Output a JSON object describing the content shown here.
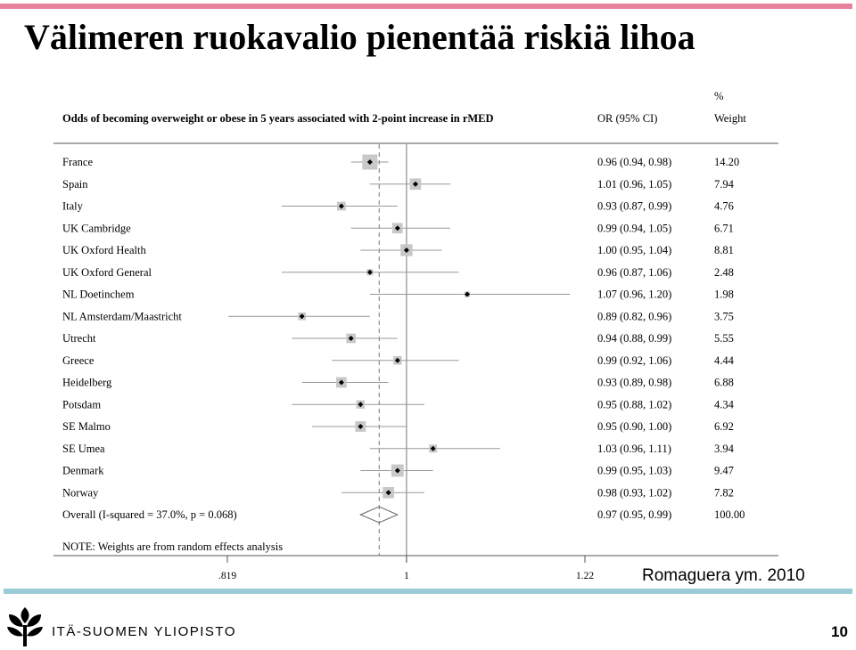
{
  "slide": {
    "title": "Välimeren ruokavalio pienentää riskiä lihoa",
    "citation": "Romaguera ym. 2010",
    "university": "ITÄ-SUOMEN YLIOPISTO",
    "page_number": "10",
    "colors": {
      "top_bar": "#e8819b",
      "bottom_bar": "#9ccbd8"
    },
    "logo_icon": "uef-logo-icon"
  },
  "chart_data": {
    "type": "forest",
    "title": "Odds of becoming overweight or obese in 5 years associated with 2-point increase in rMED",
    "col_or_header": "OR (95% CI)",
    "col_weight_unit": "%",
    "col_weight_header": "Weight",
    "note": "NOTE: Weights are from random effects analysis",
    "x_scale": "log",
    "xlim": [
      0.819,
      1.22
    ],
    "x_ticks": [
      {
        "value": 0.819,
        "label": ".819"
      },
      {
        "value": 1,
        "label": "1"
      },
      {
        "value": 1.22,
        "label": "1.22"
      }
    ],
    "null_line": 1,
    "studies": [
      {
        "name": "France",
        "or": 0.96,
        "lo": 0.94,
        "hi": 0.98,
        "ci_text": "0.96 (0.94, 0.98)",
        "weight": 14.2,
        "weight_text": "14.20"
      },
      {
        "name": "Spain",
        "or": 1.01,
        "lo": 0.96,
        "hi": 1.05,
        "ci_text": "1.01 (0.96, 1.05)",
        "weight": 7.94,
        "weight_text": "7.94"
      },
      {
        "name": "Italy",
        "or": 0.93,
        "lo": 0.87,
        "hi": 0.99,
        "ci_text": "0.93 (0.87, 0.99)",
        "weight": 4.76,
        "weight_text": "4.76"
      },
      {
        "name": "UK Cambridge",
        "or": 0.99,
        "lo": 0.94,
        "hi": 1.05,
        "ci_text": "0.99 (0.94, 1.05)",
        "weight": 6.71,
        "weight_text": "6.71"
      },
      {
        "name": "UK Oxford Health",
        "or": 1.0,
        "lo": 0.95,
        "hi": 1.04,
        "ci_text": "1.00 (0.95, 1.04)",
        "weight": 8.81,
        "weight_text": "8.81"
      },
      {
        "name": "UK Oxford General",
        "or": 0.96,
        "lo": 0.87,
        "hi": 1.06,
        "ci_text": "0.96 (0.87, 1.06)",
        "weight": 2.48,
        "weight_text": "2.48"
      },
      {
        "name": "NL Doetinchem",
        "or": 1.07,
        "lo": 0.96,
        "hi": 1.2,
        "ci_text": "1.07 (0.96, 1.20)",
        "weight": 1.98,
        "weight_text": "1.98"
      },
      {
        "name": "NL Amsterdam/Maastricht",
        "or": 0.89,
        "lo": 0.82,
        "hi": 0.96,
        "ci_text": "0.89 (0.82, 0.96)",
        "weight": 3.75,
        "weight_text": "3.75"
      },
      {
        "name": "Utrecht",
        "or": 0.94,
        "lo": 0.88,
        "hi": 0.99,
        "ci_text": "0.94 (0.88, 0.99)",
        "weight": 5.55,
        "weight_text": "5.55"
      },
      {
        "name": "Greece",
        "or": 0.99,
        "lo": 0.92,
        "hi": 1.06,
        "ci_text": "0.99 (0.92, 1.06)",
        "weight": 4.44,
        "weight_text": "4.44"
      },
      {
        "name": "Heidelberg",
        "or": 0.93,
        "lo": 0.89,
        "hi": 0.98,
        "ci_text": "0.93 (0.89, 0.98)",
        "weight": 6.88,
        "weight_text": "6.88"
      },
      {
        "name": "Potsdam",
        "or": 0.95,
        "lo": 0.88,
        "hi": 1.02,
        "ci_text": "0.95 (0.88, 1.02)",
        "weight": 4.34,
        "weight_text": "4.34"
      },
      {
        "name": "SE Malmo",
        "or": 0.95,
        "lo": 0.9,
        "hi": 1.0,
        "ci_text": "0.95 (0.90, 1.00)",
        "weight": 6.92,
        "weight_text": "6.92"
      },
      {
        "name": "SE Umea",
        "or": 1.03,
        "lo": 0.96,
        "hi": 1.11,
        "ci_text": "1.03 (0.96, 1.11)",
        "weight": 3.94,
        "weight_text": "3.94"
      },
      {
        "name": "Denmark",
        "or": 0.99,
        "lo": 0.95,
        "hi": 1.03,
        "ci_text": "0.99 (0.95, 1.03)",
        "weight": 9.47,
        "weight_text": "9.47"
      },
      {
        "name": "Norway",
        "or": 0.98,
        "lo": 0.93,
        "hi": 1.02,
        "ci_text": "0.98 (0.93, 1.02)",
        "weight": 7.82,
        "weight_text": "7.82"
      }
    ],
    "overall": {
      "name": "Overall  (I-squared = 37.0%, p = 0.068)",
      "or": 0.97,
      "lo": 0.95,
      "hi": 0.99,
      "ci_text": "0.97 (0.95, 0.99)",
      "weight": 100.0,
      "weight_text": "100.00"
    }
  }
}
